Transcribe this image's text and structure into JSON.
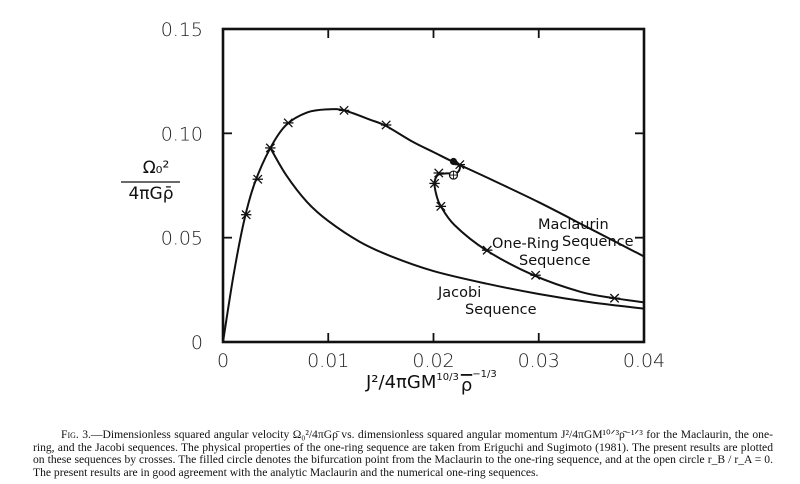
{
  "figure": {
    "number_label": "Fig. 3.",
    "y_axis_label": {
      "numerator": "Ω₀²",
      "denominator": "4πGρ̄"
    },
    "x_axis_label": "J²/4πGM^(10/3) ρ̄^(-1/3)",
    "x_axis_label_parts": {
      "base": "J²/4πGM",
      "exp1": "10/3",
      "rho": "ρ",
      "exp2": "−1/3"
    },
    "y_ticks": [
      "0",
      "0.05",
      "0.10",
      "0.15"
    ],
    "x_ticks": [
      "0",
      "0.01",
      "0.02",
      "0.03",
      "0.04"
    ],
    "labels": {
      "maclaurin_1": "Maclaurin",
      "maclaurin_2": "Sequence",
      "onering_1": "One-Ring",
      "onering_2": "Sequence",
      "jacobi_1": "Jacobi",
      "jacobi_2": "Sequence"
    }
  },
  "caption": {
    "lead": "Fig. 3.",
    "text": "—Dimensionless squared angular velocity Ω₀²/4πGρ̄ vs. dimensionless squared angular momentum J²/4πGM¹⁰ᐟ³ρ̄⁻¹ᐟ³ for the Maclaurin, the one-ring, and the Jacobi sequences. The physical properties of the one-ring sequence are taken from Eriguchi and Sugimoto (1981). The present results are plotted on these sequences by crosses. The filled circle denotes the bifurcation point from the Maclaurin to the one-ring sequence, and at the open circle r_B / r_A = 0. The present results are in good agreement with the analytic Maclaurin and the numerical one-ring sequences."
  },
  "chart_data": {
    "type": "line",
    "title": "",
    "xlabel": "J²/4πGM^(10/3) ρ̄^(-1/3)",
    "ylabel": "Ω₀²/4πGρ̄",
    "xlim": [
      0,
      0.04
    ],
    "ylim": [
      0,
      0.15
    ],
    "x_ticks": [
      0,
      0.01,
      0.02,
      0.03,
      0.04
    ],
    "y_ticks": [
      0,
      0.05,
      0.1,
      0.15
    ],
    "grid": false,
    "legend": "inline labels",
    "series": [
      {
        "name": "Maclaurin Sequence",
        "style": "solid line",
        "x": [
          0,
          0.001,
          0.002,
          0.003,
          0.0045,
          0.006,
          0.008,
          0.01,
          0.0115,
          0.014,
          0.0155,
          0.018,
          0.02,
          0.022,
          0.025,
          0.03,
          0.035,
          0.04
        ],
        "y": [
          0,
          0.032,
          0.058,
          0.076,
          0.093,
          0.104,
          0.11,
          0.1115,
          0.111,
          0.1065,
          0.1035,
          0.096,
          0.091,
          0.086,
          0.079,
          0.067,
          0.054,
          0.041
        ]
      },
      {
        "name": "Jacobi Sequence",
        "style": "solid line",
        "x": [
          0.0045,
          0.006,
          0.008,
          0.01,
          0.013,
          0.016,
          0.02,
          0.025,
          0.03,
          0.035,
          0.04
        ],
        "y": [
          0.093,
          0.08,
          0.067,
          0.058,
          0.048,
          0.041,
          0.034,
          0.028,
          0.023,
          0.019,
          0.016
        ]
      },
      {
        "name": "One-Ring Sequence",
        "style": "solid line",
        "x": [
          0.0219,
          0.0225,
          0.0222,
          0.0212,
          0.0204,
          0.0201,
          0.0203,
          0.0207,
          0.022,
          0.025,
          0.0295,
          0.034,
          0.0372,
          0.04
        ],
        "y": [
          0.0865,
          0.084,
          0.081,
          0.0808,
          0.08,
          0.076,
          0.07,
          0.065,
          0.056,
          0.044,
          0.032,
          0.024,
          0.021,
          0.019
        ]
      },
      {
        "name": "Present results (crosses)",
        "style": "markers x",
        "x": [
          0.0022,
          0.0033,
          0.0045,
          0.0062,
          0.0115,
          0.0155,
          0.0225,
          0.0205,
          0.0201,
          0.0207,
          0.0251,
          0.0297,
          0.0372
        ],
        "y": [
          0.061,
          0.078,
          0.093,
          0.105,
          0.111,
          0.104,
          0.085,
          0.081,
          0.076,
          0.065,
          0.044,
          0.032,
          0.021
        ]
      }
    ],
    "annotations": [
      {
        "type": "filled circle",
        "meaning": "bifurcation point Maclaurin → one-ring",
        "x": 0.0219,
        "y": 0.0865
      },
      {
        "type": "open circle",
        "meaning": "r_B / r_A = 0",
        "x": 0.0219,
        "y": 0.08
      }
    ]
  }
}
